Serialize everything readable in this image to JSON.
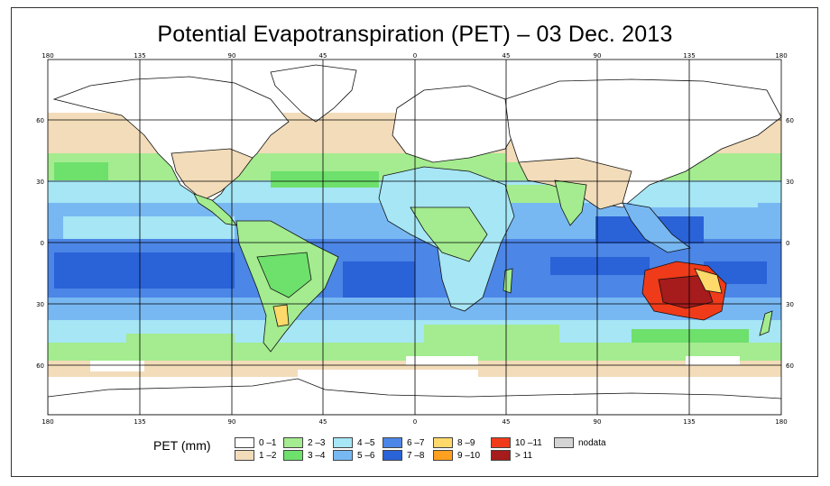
{
  "title": "Potential Evapotranspiration (PET) – 03 Dec. 2013",
  "legend": {
    "title": "PET (mm)",
    "classes": [
      {
        "label": "0 –1",
        "color": "#ffffff"
      },
      {
        "label": "1 –2",
        "color": "#f2dcb9"
      },
      {
        "label": "2 –3",
        "color": "#a4ec8f"
      },
      {
        "label": "3 –4",
        "color": "#6ee06c"
      },
      {
        "label": "4 –5",
        "color": "#a6e6f5"
      },
      {
        "label": "5 –6",
        "color": "#78b8f2"
      },
      {
        "label": "6 –7",
        "color": "#4c86e6"
      },
      {
        "label": "7 –8",
        "color": "#2a62d8"
      },
      {
        "label": "8 –9",
        "color": "#ffd96a"
      },
      {
        "label": "9 –10",
        "color": "#ffa020"
      },
      {
        "label": "10 –11",
        "color": "#ef3b1a"
      },
      {
        "label": "> 11",
        "color": "#a61b1b"
      },
      {
        "label": "nodata",
        "color": "#d4d4d4"
      }
    ]
  },
  "axes": {
    "lon_ticks": [
      "180",
      "135",
      "90",
      "45",
      "0",
      "45",
      "90",
      "135",
      "180"
    ],
    "lat_ticks": [
      "60",
      "30",
      "0",
      "30",
      "60"
    ]
  },
  "icons": [
    "coastline-map-icon"
  ]
}
